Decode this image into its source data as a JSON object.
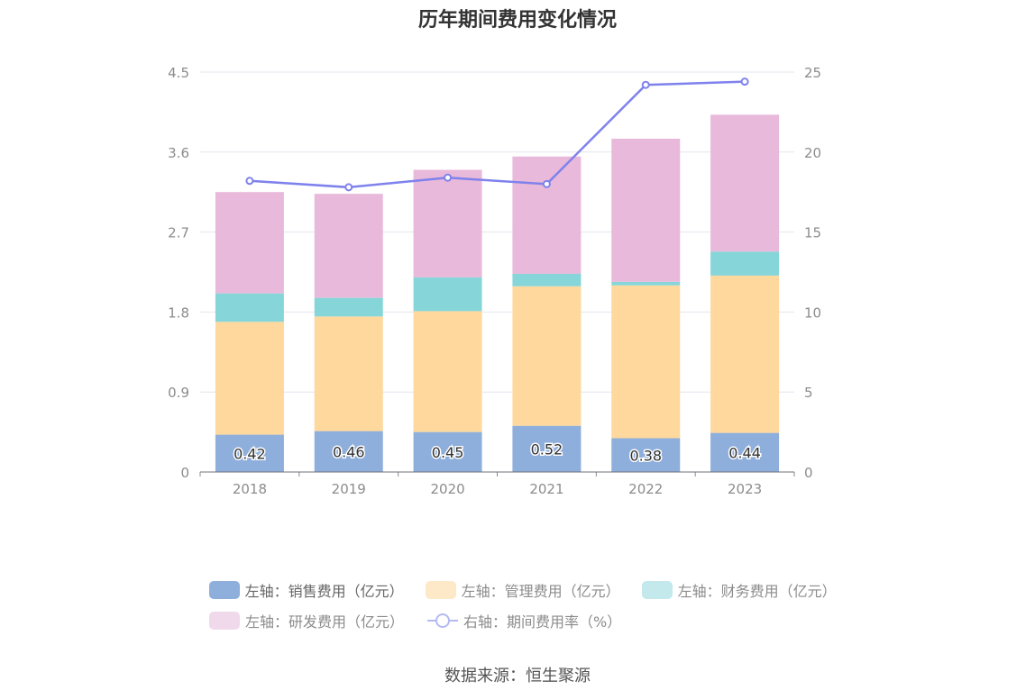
{
  "chart_data": {
    "type": "bar",
    "title": "历年期间费用变化情况",
    "categories": [
      "2018",
      "2019",
      "2020",
      "2021",
      "2022",
      "2023"
    ],
    "stacked": true,
    "left_axis": {
      "min": 0,
      "max": 4.5,
      "ticks": [
        "0",
        "0.9",
        "1.8",
        "2.7",
        "3.6",
        "4.5"
      ]
    },
    "right_axis": {
      "min": 0,
      "max": 25,
      "ticks": [
        "0",
        "5",
        "10",
        "15",
        "20",
        "25"
      ]
    },
    "series": [
      {
        "name": "左轴：销售费用（亿元）",
        "type": "bar",
        "axis": "left",
        "color": "#8eaedc",
        "values": [
          0.42,
          0.46,
          0.45,
          0.52,
          0.38,
          0.44
        ],
        "labels": [
          "0.42",
          "0.46",
          "0.45",
          "0.52",
          "0.38",
          "0.44"
        ]
      },
      {
        "name": "左轴：管理费用（亿元）",
        "type": "bar",
        "axis": "left",
        "color": "#fed89d",
        "legend_color": "#fde8c8",
        "values": [
          1.27,
          1.29,
          1.36,
          1.57,
          1.72,
          1.77
        ]
      },
      {
        "name": "左轴：财务费用（亿元）",
        "type": "bar",
        "axis": "left",
        "color": "#86d6d9",
        "legend_color": "#c4e9ec",
        "values": [
          0.32,
          0.21,
          0.38,
          0.14,
          0.04,
          0.27
        ]
      },
      {
        "name": "左轴：研发费用（亿元）",
        "type": "bar",
        "axis": "left",
        "color": "#e8b9da",
        "legend_color": "#f1d9ec",
        "values": [
          1.14,
          1.17,
          1.21,
          1.32,
          1.61,
          1.54
        ]
      },
      {
        "name": "右轴：期间费用率（%）",
        "type": "line",
        "axis": "right",
        "color": "#7f82ec",
        "legend_color": "#b5b9f3",
        "values": [
          18.2,
          17.8,
          18.4,
          18.0,
          24.2,
          24.4
        ]
      }
    ],
    "source": "数据来源：恒生聚源"
  }
}
